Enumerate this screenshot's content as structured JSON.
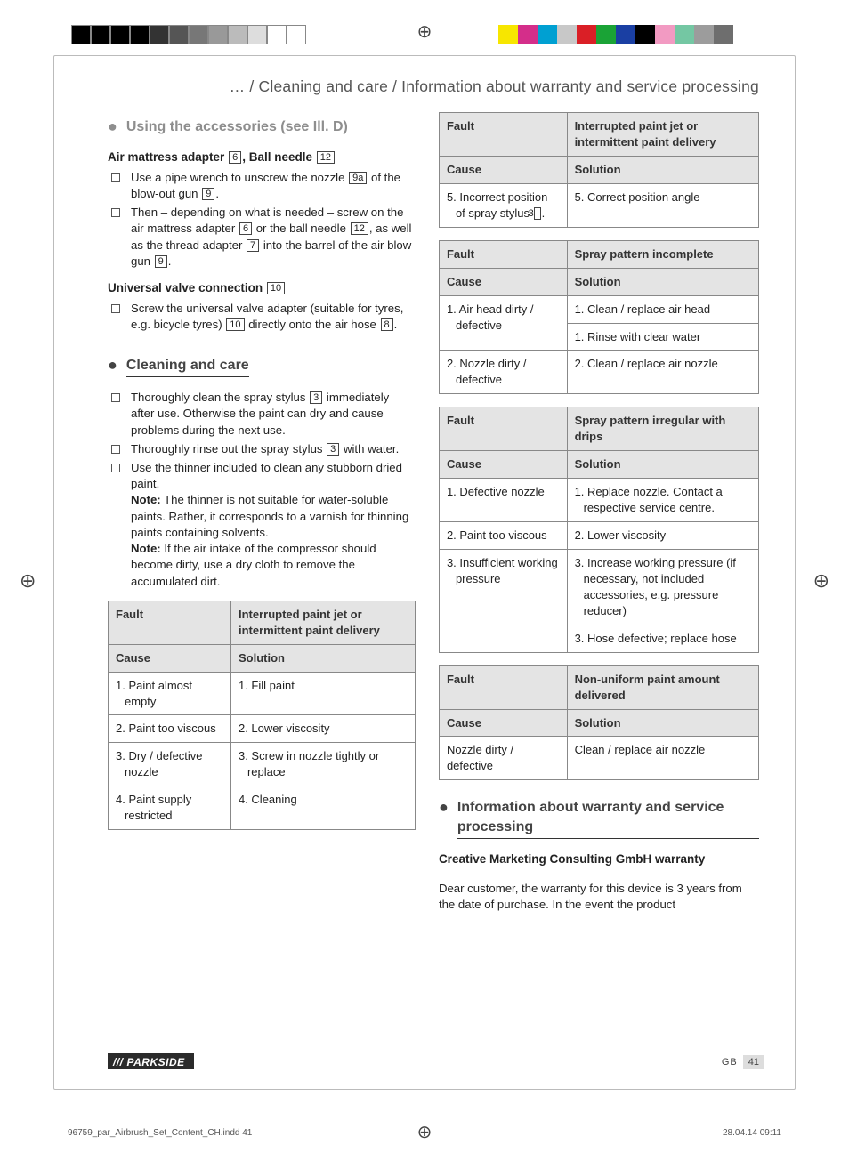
{
  "print": {
    "left_swatches": [
      "#000000",
      "#000000",
      "#000000",
      "#000000",
      "#333333",
      "#555555",
      "#777777",
      "#999999",
      "#bbbbbb",
      "#dddddd",
      "#ffffff",
      "#ffffff"
    ],
    "right_swatches": [
      "#f7e600",
      "#d42e8a",
      "#00a0d2",
      "#c8c8c8",
      "#da1f26",
      "#1aa336",
      "#1a3fa3",
      "#000000",
      "#f29ac2",
      "#74c7a3",
      "#9c9c9c",
      "#6e6e6e"
    ],
    "border_color": "#888888",
    "header_bg": "#e4e4e4"
  },
  "running_head": "… / Cleaning and care / Information about warranty and service processing",
  "left": {
    "h_accessories": "Using the accessories (see Ill. D)",
    "sub1_pre": "Air mattress adapter",
    "sub1_num1": "6",
    "sub1_mid": ", Ball needle",
    "sub1_num2": "12",
    "acc_list": [
      {
        "pre": "Use a pipe wrench to unscrew the nozzle ",
        "n1": "9a",
        "mid": " of the blow-out gun ",
        "n2": "9",
        "post": "."
      },
      {
        "pre": "Then – depending on what is needed – screw on the air mattress adapter ",
        "n1": "6",
        "mid": " or the ball needle ",
        "n2": "12",
        "mid2": ", as well as the thread adapter ",
        "n3": "7",
        "mid3": " into the barrel of the air blow gun ",
        "n4": "9",
        "post": "."
      }
    ],
    "sub2_pre": "Universal valve connection",
    "sub2_num": "10",
    "uvc_list": [
      {
        "pre": "Screw the universal valve adapter (suitable for tyres, e.g. bicycle tyres) ",
        "n1": "10",
        "mid": " directly onto the air hose ",
        "n2": "8",
        "post": "."
      }
    ],
    "h_clean": "Cleaning and care",
    "clean_list": [
      {
        "pre": "Thoroughly clean the spray stylus ",
        "n1": "3",
        "post": " immediately after use. Otherwise the paint can dry and cause problems during the next use."
      },
      {
        "pre": "Thoroughly rinse out the spray stylus ",
        "n1": "3",
        "post": " with water."
      },
      {
        "text": "Use the thinner included to clean any stubborn dried paint."
      }
    ],
    "note1_label": "Note:",
    "note1": " The thinner is not suitable for water-soluble paints. Rather, it corresponds to a varnish for thinning paints containing solvents.",
    "note2_label": "Note:",
    "note2": " If the air intake of the compressor should become dirty, use a dry cloth to remove the accumulated dirt.",
    "table1": {
      "fault_label": "Fault",
      "fault_value": "Interrupted paint jet or intermittent paint delivery",
      "cause_label": "Cause",
      "solution_label": "Solution",
      "rows": [
        {
          "c": "1. Paint almost empty",
          "s": "1. Fill paint"
        },
        {
          "c": "2. Paint too viscous",
          "s": "2. Lower viscosity"
        },
        {
          "c": "3. Dry / defective nozzle",
          "s": "3. Screw in nozzle tightly or replace"
        },
        {
          "c": "4. Paint supply restricted",
          "s": "4. Cleaning"
        }
      ]
    }
  },
  "right": {
    "tableA": {
      "fault_label": "Fault",
      "fault_value": "Interrupted paint jet or intermittent paint delivery",
      "cause_label": "Cause",
      "solution_label": "Solution",
      "row_c_pre": "5. Incorrect position of spray stylus ",
      "row_c_num": "3",
      "row_c_post": ".",
      "row_s": "5. Correct position angle"
    },
    "tableB": {
      "fault_label": "Fault",
      "fault_value": "Spray pattern incomplete",
      "cause_label": "Cause",
      "solution_label": "Solution",
      "rows": [
        {
          "c": "1. Air head dirty / defective",
          "s": "1. Clean / replace air head",
          "s2": "1. Rinse with clear water",
          "crows": 2
        },
        {
          "c": "2. Nozzle dirty / defective",
          "s": "2. Clean / replace air nozzle"
        }
      ]
    },
    "tableC": {
      "fault_label": "Fault",
      "fault_value": "Spray pattern irregular with drips",
      "cause_label": "Cause",
      "solution_label": "Solution",
      "rows": [
        {
          "c": "1. Defective nozzle",
          "s": "1. Replace nozzle. Contact a respective service centre."
        },
        {
          "c": "2. Paint too viscous",
          "s": "2. Lower viscosity"
        },
        {
          "c": "3. Insufficient working pressure",
          "s": "3. Increase working pressure (if necessary, not included accessories, e.g. pressure reducer)",
          "s2": "3. Hose defective; replace hose",
          "crows": 2
        }
      ]
    },
    "tableD": {
      "fault_label": "Fault",
      "fault_value": "Non-uniform paint amount delivered",
      "cause_label": "Cause",
      "solution_label": "Solution",
      "rows": [
        {
          "c": "Nozzle dirty / defective",
          "s": "Clean / replace air nozzle"
        }
      ]
    },
    "h_warranty": "Information about warranty and service processing",
    "warranty_sub": "Creative Marketing Consulting GmbH warranty",
    "warranty_body": "Dear customer, the warranty for this device is 3 years from the date of purchase. In the event the product"
  },
  "footer": {
    "brand": "PARKSIDE",
    "gb": "GB",
    "page": "41",
    "file": "96759_par_Airbrush_Set_Content_CH.indd   41",
    "stamp": "28.04.14   09:11"
  }
}
